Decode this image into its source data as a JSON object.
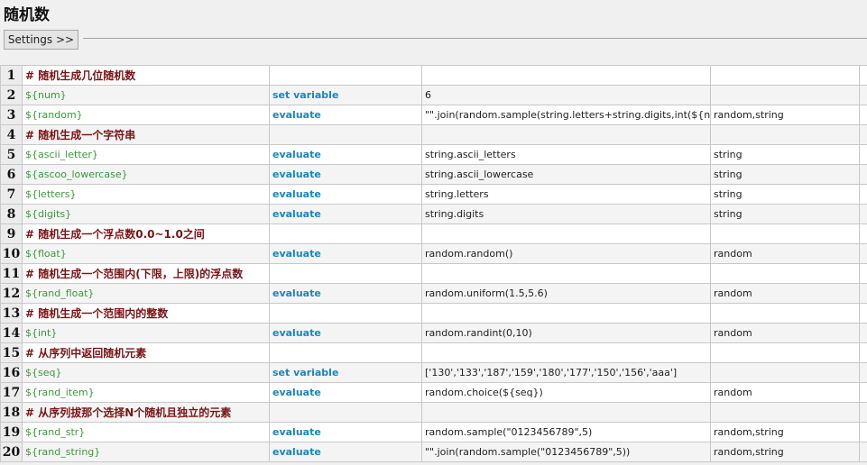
{
  "page_title": "随机数",
  "settings_label": "Settings >>",
  "colors": {
    "comment": "#7a1416",
    "variable": "#3a9a3a",
    "keyword": "#1a86c0"
  },
  "rows": [
    {
      "n": "1",
      "type": "comment",
      "c1": "# 随机生成几位随机数",
      "c2": "",
      "c3": "",
      "c4": ""
    },
    {
      "n": "2",
      "type": "step",
      "c1": "${num}",
      "c2": "set variable",
      "c3": "6",
      "c4": ""
    },
    {
      "n": "3",
      "type": "step",
      "c1": "${random}",
      "c2": "evaluate",
      "c3": "\"\".join(random.sample(string.letters+string.digits,int(${num})))",
      "c4": "random,string"
    },
    {
      "n": "4",
      "type": "comment",
      "c1": "# 随机生成一个字符串",
      "c2": "",
      "c3": "",
      "c4": ""
    },
    {
      "n": "5",
      "type": "step",
      "c1": "${ascii_letter}",
      "c2": "evaluate",
      "c3": "string.ascii_letters",
      "c4": "string"
    },
    {
      "n": "6",
      "type": "step",
      "c1": "${ascoo_lowercase}",
      "c2": "evaluate",
      "c3": "string.ascii_lowercase",
      "c4": "string"
    },
    {
      "n": "7",
      "type": "step",
      "c1": "${letters}",
      "c2": "evaluate",
      "c3": "string.letters",
      "c4": "string"
    },
    {
      "n": "8",
      "type": "step",
      "c1": "${digits}",
      "c2": "evaluate",
      "c3": "string.digits",
      "c4": "string"
    },
    {
      "n": "9",
      "type": "comment",
      "c1": "# 随机生成一个浮点数0.0~1.0之间",
      "c2": "",
      "c3": "",
      "c4": ""
    },
    {
      "n": "10",
      "type": "step",
      "c1": "${float}",
      "c2": "evaluate",
      "c3": "random.random()",
      "c4": "random"
    },
    {
      "n": "11",
      "type": "comment",
      "c1": "# 随机生成一个范围内(下限，上限)的浮点数",
      "c2": "",
      "c3": "",
      "c4": ""
    },
    {
      "n": "12",
      "type": "step",
      "c1": "${rand_float}",
      "c2": "evaluate",
      "c3": "random.uniform(1.5,5.6)",
      "c4": "random"
    },
    {
      "n": "13",
      "type": "comment",
      "c1": "# 随机生成一个范围内的整数",
      "c2": "",
      "c3": "",
      "c4": ""
    },
    {
      "n": "14",
      "type": "step",
      "c1": "${int}",
      "c2": "evaluate",
      "c3": "random.randint(0,10)",
      "c4": "random"
    },
    {
      "n": "15",
      "type": "comment",
      "c1": "# 从序列中返回随机元素",
      "c2": "",
      "c3": "",
      "c4": ""
    },
    {
      "n": "16",
      "type": "step",
      "c1": "${seq}",
      "c2": "set variable",
      "c3": "['130','133','187','159','180','177','150','156','aaa']",
      "c4": ""
    },
    {
      "n": "17",
      "type": "step",
      "c1": "${rand_item}",
      "c2": "evaluate",
      "c3": "random.choice(${seq})",
      "c4": "random"
    },
    {
      "n": "18",
      "type": "comment",
      "c1": "# 从序列拔那个选择N个随机且独立的元素",
      "c2": "",
      "c3": "",
      "c4": ""
    },
    {
      "n": "19",
      "type": "step",
      "c1": "${rand_str}",
      "c2": "evaluate",
      "c3": "random.sample(\"0123456789\",5)",
      "c4": "random,string"
    },
    {
      "n": "20",
      "type": "step",
      "c1": "${rand_string}",
      "c2": "evaluate",
      "c3": "\"\".join(random.sample(\"0123456789\",5))",
      "c4": "random,string"
    }
  ]
}
